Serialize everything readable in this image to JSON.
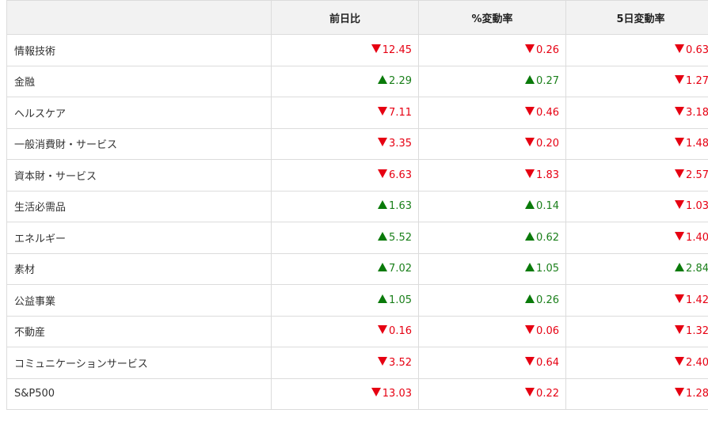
{
  "columns": [
    "",
    "前日比",
    "%変動率",
    "5日変動率"
  ],
  "rows": [
    {
      "name": "情報技術",
      "cells": [
        {
          "dir": "down",
          "value": "12.45"
        },
        {
          "dir": "down",
          "value": "0.26"
        },
        {
          "dir": "down",
          "value": "0.63"
        }
      ]
    },
    {
      "name": "金融",
      "cells": [
        {
          "dir": "up",
          "value": "2.29"
        },
        {
          "dir": "up",
          "value": "0.27"
        },
        {
          "dir": "down",
          "value": "1.27"
        }
      ]
    },
    {
      "name": "ヘルスケア",
      "cells": [
        {
          "dir": "down",
          "value": "7.11"
        },
        {
          "dir": "down",
          "value": "0.46"
        },
        {
          "dir": "down",
          "value": "3.18"
        }
      ]
    },
    {
      "name": "一般消費財・サービス",
      "cells": [
        {
          "dir": "down",
          "value": "3.35"
        },
        {
          "dir": "down",
          "value": "0.20"
        },
        {
          "dir": "down",
          "value": "1.48"
        }
      ]
    },
    {
      "name": "資本財・サービス",
      "cells": [
        {
          "dir": "down",
          "value": "6.63"
        },
        {
          "dir": "down",
          "value": "1.83"
        },
        {
          "dir": "down",
          "value": "2.57"
        }
      ]
    },
    {
      "name": "生活必需品",
      "cells": [
        {
          "dir": "up",
          "value": "1.63"
        },
        {
          "dir": "up",
          "value": "0.14"
        },
        {
          "dir": "down",
          "value": "1.03"
        }
      ]
    },
    {
      "name": "エネルギー",
      "cells": [
        {
          "dir": "up",
          "value": "5.52"
        },
        {
          "dir": "up",
          "value": "0.62"
        },
        {
          "dir": "down",
          "value": "1.40"
        }
      ]
    },
    {
      "name": "素材",
      "cells": [
        {
          "dir": "up",
          "value": "7.02"
        },
        {
          "dir": "up",
          "value": "1.05"
        },
        {
          "dir": "up",
          "value": "2.84"
        }
      ]
    },
    {
      "name": "公益事業",
      "cells": [
        {
          "dir": "up",
          "value": "1.05"
        },
        {
          "dir": "up",
          "value": "0.26"
        },
        {
          "dir": "down",
          "value": "1.42"
        }
      ]
    },
    {
      "name": "不動産",
      "cells": [
        {
          "dir": "down",
          "value": "0.16"
        },
        {
          "dir": "down",
          "value": "0.06"
        },
        {
          "dir": "down",
          "value": "1.32"
        }
      ]
    },
    {
      "name": "コミュニケーションサービス",
      "cells": [
        {
          "dir": "down",
          "value": "3.52"
        },
        {
          "dir": "down",
          "value": "0.64"
        },
        {
          "dir": "down",
          "value": "2.40"
        }
      ]
    },
    {
      "name": "S&P500",
      "cells": [
        {
          "dir": "down",
          "value": "13.03"
        },
        {
          "dir": "down",
          "value": "0.22"
        },
        {
          "dir": "down",
          "value": "1.28"
        }
      ]
    }
  ],
  "colors": {
    "down": "#e60012",
    "up": "#0a7a0a",
    "header_bg": "#f2f2f2",
    "border": "#dcdcdc"
  },
  "icons": {
    "down": "triangle-down-icon",
    "up": "triangle-up-icon"
  }
}
